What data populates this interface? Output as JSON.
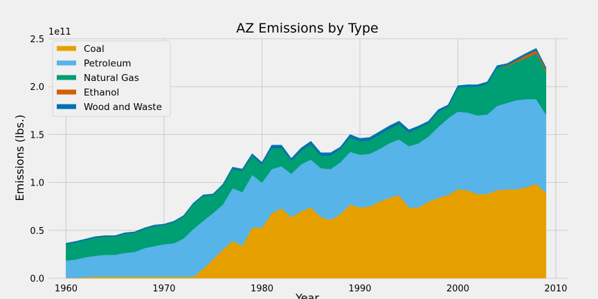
{
  "chart_data": {
    "type": "area",
    "stacked": true,
    "title": "AZ Emissions by Type",
    "xlabel": "Year",
    "ylabel": "Emissions (lbs.)",
    "y_offset_label": "1e11",
    "xlim": [
      1958.2,
      2011.2
    ],
    "ylim": [
      0,
      2.5
    ],
    "y_multiplier": 100000000000,
    "xticks": [
      1960,
      1970,
      1980,
      1990,
      2000,
      2010
    ],
    "yticks": [
      "0.0",
      "0.5",
      "1.0",
      "1.5",
      "2.0",
      "2.5"
    ],
    "grid": true,
    "legend_position": "top-left",
    "x": [
      1960,
      1961,
      1962,
      1963,
      1964,
      1965,
      1966,
      1967,
      1968,
      1969,
      1970,
      1971,
      1972,
      1973,
      1974,
      1975,
      1976,
      1977,
      1978,
      1979,
      1980,
      1981,
      1982,
      1983,
      1984,
      1985,
      1986,
      1987,
      1988,
      1989,
      1990,
      1991,
      1992,
      1993,
      1994,
      1995,
      1996,
      1997,
      1998,
      1999,
      2000,
      2001,
      2002,
      2003,
      2004,
      2005,
      2006,
      2007,
      2008,
      2009
    ],
    "series": [
      {
        "name": "Coal",
        "color": "#e5a000",
        "values": [
          0.005,
          0.005,
          0.01,
          0.015,
          0.015,
          0.015,
          0.015,
          0.015,
          0.015,
          0.015,
          0.015,
          0.015,
          0.015,
          0.015,
          0.1,
          0.2,
          0.3,
          0.39,
          0.34,
          0.53,
          0.53,
          0.68,
          0.73,
          0.64,
          0.7,
          0.74,
          0.64,
          0.61,
          0.67,
          0.77,
          0.74,
          0.75,
          0.8,
          0.84,
          0.87,
          0.74,
          0.74,
          0.8,
          0.84,
          0.87,
          0.93,
          0.92,
          0.88,
          0.88,
          0.92,
          0.93,
          0.93,
          0.95,
          0.99,
          0.89
        ]
      },
      {
        "name": "Petroleum",
        "color": "#56b4e9",
        "values": [
          0.18,
          0.19,
          0.21,
          0.22,
          0.23,
          0.23,
          0.25,
          0.26,
          0.3,
          0.32,
          0.34,
          0.35,
          0.4,
          0.5,
          0.5,
          0.48,
          0.47,
          0.55,
          0.56,
          0.55,
          0.47,
          0.46,
          0.44,
          0.45,
          0.49,
          0.5,
          0.51,
          0.53,
          0.54,
          0.55,
          0.55,
          0.55,
          0.55,
          0.57,
          0.58,
          0.64,
          0.67,
          0.68,
          0.74,
          0.8,
          0.81,
          0.81,
          0.82,
          0.83,
          0.88,
          0.9,
          0.93,
          0.92,
          0.88,
          0.82
        ]
      },
      {
        "name": "Natural Gas",
        "color": "#009e73",
        "values": [
          0.17,
          0.18,
          0.18,
          0.19,
          0.19,
          0.19,
          0.2,
          0.2,
          0.2,
          0.21,
          0.2,
          0.22,
          0.23,
          0.26,
          0.26,
          0.19,
          0.2,
          0.2,
          0.22,
          0.2,
          0.19,
          0.22,
          0.19,
          0.14,
          0.14,
          0.16,
          0.13,
          0.14,
          0.14,
          0.15,
          0.14,
          0.14,
          0.15,
          0.15,
          0.16,
          0.14,
          0.16,
          0.14,
          0.16,
          0.12,
          0.25,
          0.27,
          0.3,
          0.32,
          0.4,
          0.38,
          0.4,
          0.43,
          0.48,
          0.45
        ]
      },
      {
        "name": "Ethanol",
        "color": "#d55e00",
        "values": [
          0,
          0,
          0,
          0,
          0,
          0,
          0,
          0,
          0,
          0,
          0,
          0,
          0,
          0,
          0,
          0,
          0,
          0,
          0,
          0,
          0,
          0,
          0,
          0,
          0,
          0,
          0,
          0,
          0,
          0,
          0,
          0,
          0,
          0,
          0,
          0,
          0,
          0,
          0,
          0,
          0,
          0,
          0,
          0,
          0,
          0.01,
          0.015,
          0.03,
          0.03,
          0.02
        ]
      },
      {
        "name": "Wood and Waste",
        "color": "#0072b2",
        "values": [
          0.01,
          0.01,
          0.01,
          0.01,
          0.01,
          0.01,
          0.01,
          0.01,
          0.01,
          0.01,
          0.01,
          0.01,
          0.01,
          0.01,
          0.01,
          0.01,
          0.01,
          0.02,
          0.02,
          0.02,
          0.02,
          0.03,
          0.03,
          0.02,
          0.03,
          0.03,
          0.03,
          0.03,
          0.02,
          0.03,
          0.03,
          0.03,
          0.03,
          0.03,
          0.03,
          0.03,
          0.02,
          0.02,
          0.02,
          0.02,
          0.02,
          0.02,
          0.02,
          0.02,
          0.02,
          0.02,
          0.02,
          0.02,
          0.02,
          0.02
        ]
      }
    ]
  }
}
